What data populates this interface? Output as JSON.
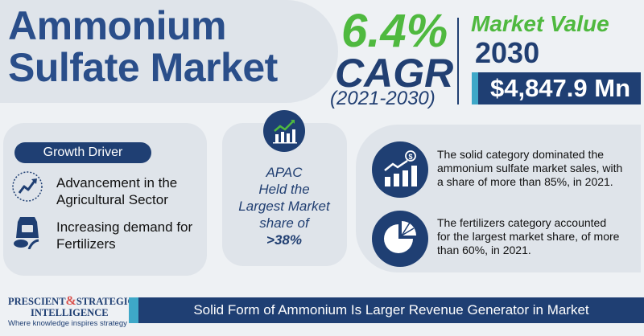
{
  "header": {
    "title_line1": "Ammonium",
    "title_line2": "Sulfate Market"
  },
  "cagr": {
    "value": "6.4%",
    "label": "CAGR",
    "period": "(2021-2030)"
  },
  "market_value": {
    "label": "Market Value",
    "year": "2030",
    "amount": "$4,847.9 Mn"
  },
  "growth_driver": {
    "heading": "Growth Driver",
    "items": [
      {
        "line1": "Advancement in the",
        "line2": "Agricultural Sector",
        "icon": "growth-trend-icon"
      },
      {
        "line1": "Increasing demand for",
        "line2": "Fertilizers",
        "icon": "fertilizer-bag-icon"
      }
    ]
  },
  "region": {
    "line1": "APAC",
    "line2": "Held the",
    "line3": "Largest Market",
    "line4": "share of",
    "share": ">38%",
    "icon": "bar-chart-icon"
  },
  "highlights": [
    {
      "line1": "The solid category dominated the",
      "line2": "ammonium sulfate market sales, with",
      "line3": "a share of more than 85%, in 2021.",
      "icon": "revenue-chart-icon"
    },
    {
      "line1": "The fertilizers category accounted",
      "line2": "for the largest market share, of more",
      "line3": "than 60%, in 2021.",
      "icon": "pie-chart-icon"
    }
  ],
  "footer": {
    "banner": "Solid Form of Ammonium Is Larger Revenue Generator in Market"
  },
  "logo": {
    "word1": "PRESCIENT",
    "amp": "&",
    "word2": "STRATEGIC",
    "word3": "INTELLIGENCE",
    "tagline": "Where knowledge inspires strategy"
  },
  "colors": {
    "navy": "#1f3f73",
    "green": "#4fb93f",
    "teal": "#3ea8c8",
    "panel": "#dfe4ea"
  }
}
